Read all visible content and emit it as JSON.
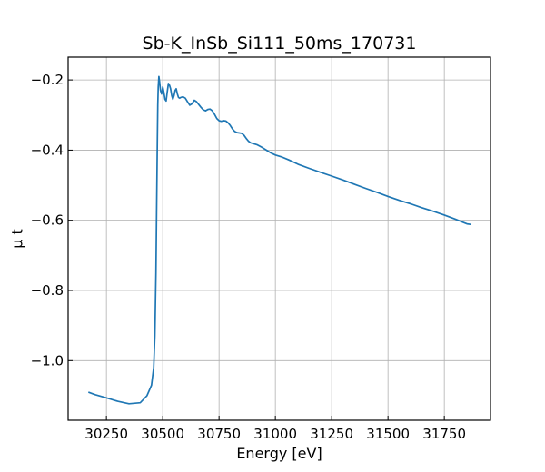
{
  "chart_data": {
    "type": "line",
    "title": "Sb-K_InSb_Si111_50ms_170731",
    "xlabel": "Energy [eV]",
    "ylabel": "μ t",
    "xlim": [
      30080,
      31955
    ],
    "ylim": [
      -1.17,
      -0.135
    ],
    "x_ticks": [
      30250,
      30500,
      30750,
      31000,
      31250,
      31500,
      31750
    ],
    "x_tick_labels": [
      "30250",
      "30500",
      "30750",
      "31000",
      "31250",
      "31500",
      "31750"
    ],
    "y_ticks": [
      -1.0,
      -0.8,
      -0.6,
      -0.4,
      -0.2
    ],
    "y_tick_labels": [
      "−1.0",
      "−0.8",
      "−0.6",
      "−0.4",
      "−0.2"
    ],
    "grid": true,
    "series": [
      {
        "color": "#1f77b4",
        "x": [
          30170,
          30200,
          30250,
          30300,
          30350,
          30400,
          30430,
          30450,
          30460,
          30465,
          30470,
          30473,
          30476,
          30478,
          30480,
          30483,
          30486,
          30490,
          30495,
          30500,
          30505,
          30510,
          30515,
          30520,
          30525,
          30530,
          30535,
          30540,
          30545,
          30550,
          30555,
          30560,
          30565,
          30570,
          30575,
          30580,
          30590,
          30600,
          30610,
          30620,
          30630,
          30640,
          30650,
          30660,
          30670,
          30680,
          30690,
          30700,
          30710,
          30720,
          30730,
          30740,
          30750,
          30760,
          30770,
          30780,
          30790,
          30800,
          30810,
          30820,
          30830,
          30840,
          30850,
          30860,
          30870,
          30880,
          30890,
          30900,
          30920,
          30940,
          30960,
          30980,
          31000,
          31030,
          31060,
          31100,
          31150,
          31200,
          31250,
          31300,
          31350,
          31400,
          31450,
          31500,
          31550,
          31600,
          31650,
          31700,
          31750,
          31800,
          31850,
          31870
        ],
        "y": [
          -1.09,
          -1.097,
          -1.106,
          -1.116,
          -1.123,
          -1.12,
          -1.1,
          -1.07,
          -1.02,
          -0.93,
          -0.75,
          -0.55,
          -0.38,
          -0.27,
          -0.22,
          -0.19,
          -0.205,
          -0.23,
          -0.24,
          -0.22,
          -0.235,
          -0.255,
          -0.26,
          -0.235,
          -0.21,
          -0.215,
          -0.225,
          -0.245,
          -0.255,
          -0.245,
          -0.23,
          -0.225,
          -0.24,
          -0.25,
          -0.252,
          -0.25,
          -0.248,
          -0.252,
          -0.262,
          -0.272,
          -0.268,
          -0.258,
          -0.262,
          -0.27,
          -0.278,
          -0.285,
          -0.288,
          -0.284,
          -0.283,
          -0.288,
          -0.298,
          -0.31,
          -0.316,
          -0.318,
          -0.316,
          -0.317,
          -0.322,
          -0.33,
          -0.34,
          -0.347,
          -0.35,
          -0.351,
          -0.352,
          -0.357,
          -0.366,
          -0.374,
          -0.379,
          -0.381,
          -0.385,
          -0.392,
          -0.4,
          -0.408,
          -0.414,
          -0.42,
          -0.428,
          -0.44,
          -0.452,
          -0.463,
          -0.474,
          -0.485,
          -0.497,
          -0.509,
          -0.52,
          -0.532,
          -0.543,
          -0.553,
          -0.564,
          -0.574,
          -0.585,
          -0.597,
          -0.61,
          -0.612
        ]
      }
    ]
  }
}
